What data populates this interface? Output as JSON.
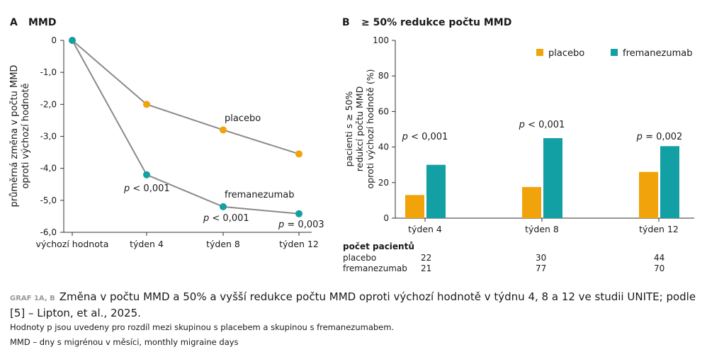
{
  "chart_data": [
    {
      "type": "line",
      "panel": "A",
      "title": "MMD",
      "ylabel": "průměrná změna v počtu MMD oproti výchozí hodnotě",
      "categories": [
        "výchozí hodnota",
        "týden 4",
        "týden 8",
        "týden 12"
      ],
      "ylim": [
        -6,
        0
      ],
      "yticks": [
        "0",
        "-1,0",
        "-2,0",
        "-3,0",
        "-4,0",
        "-5,0",
        "-6,0"
      ],
      "series": [
        {
          "name": "placebo",
          "color": "#f0a30a",
          "values": [
            0,
            -2.0,
            -2.8,
            -3.55
          ]
        },
        {
          "name": "fremanezumab",
          "color": "#13a0a4",
          "values": [
            0,
            -4.2,
            -5.2,
            -5.42
          ]
        }
      ],
      "annotations": [
        {
          "p": "p",
          "text": " < 0,001"
        },
        {
          "p": "p",
          "text": " < 0,001"
        },
        {
          "p": "p",
          "text": " = 0,003"
        }
      ]
    },
    {
      "type": "bar",
      "panel": "B",
      "title": "≥ 50% redukce počtu MMD",
      "ylabel": "pacienti s ≥ 50% redukcí počtu MMD oproti výchozí hodnotě (%)",
      "categories": [
        "týden 4",
        "týden 8",
        "týden 12"
      ],
      "ylim": [
        0,
        100
      ],
      "yticks": [
        "0",
        "20",
        "40",
        "60",
        "80",
        "100"
      ],
      "series": [
        {
          "name": "placebo",
          "color": "#f0a30a",
          "values": [
            13,
            17.5,
            26
          ]
        },
        {
          "name": "fremanezumab",
          "color": "#13a0a4",
          "values": [
            30,
            45,
            40.5
          ]
        }
      ],
      "annotations": [
        {
          "p": "p",
          "text": " < 0,001"
        },
        {
          "p": "p",
          "text": " < 0,001"
        },
        {
          "p": "p",
          "text": " = 0,002"
        }
      ],
      "legend": "top-right"
    }
  ],
  "labels": {
    "A": "A",
    "B": "B"
  },
  "patients": {
    "title": "počet pacientů",
    "rows": [
      {
        "name": "placebo",
        "values": [
          "22",
          "30",
          "44"
        ]
      },
      {
        "name": "fremanezumab",
        "values": [
          "21",
          "77",
          "70"
        ]
      }
    ]
  },
  "caption": {
    "label": "GRAF 1A, B",
    "title": "Změna v počtu MMD a 50% a vyšší redukce počtu MMD oproti výchozí hodnotě v týdnu 4, 8 a 12 ve studii UNITE; podle [5] – Lipton, et al., 2025.",
    "note": "Hodnoty p jsou uvedeny pro rozdíl mezi skupinou s placebem a skupinou s fremanezumabem.",
    "abbr": "MMD – dny s migrénou v měsíci, monthly migraine days"
  }
}
